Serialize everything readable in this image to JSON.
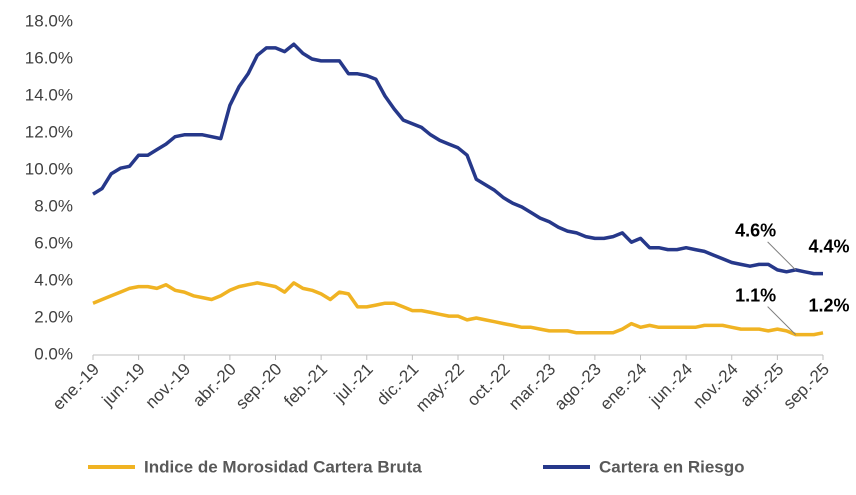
{
  "chart_data": {
    "type": "line",
    "categories": [
      "ene.-19",
      null,
      null,
      null,
      null,
      "jun.-19",
      null,
      null,
      null,
      null,
      "nov.-19",
      null,
      null,
      null,
      null,
      "abr.-20",
      null,
      null,
      null,
      null,
      "sep.-20",
      null,
      null,
      null,
      null,
      "feb.-21",
      null,
      null,
      null,
      null,
      "jul.-21",
      null,
      null,
      null,
      null,
      "dic.-21",
      null,
      null,
      null,
      null,
      "may.-22",
      null,
      null,
      null,
      null,
      "oct.-22",
      null,
      null,
      null,
      null,
      "mar.-23",
      null,
      null,
      null,
      null,
      "ago.-23",
      null,
      null,
      null,
      null,
      "ene.-24",
      null,
      null,
      null,
      null,
      "jun.-24",
      null,
      null,
      null,
      null,
      "nov.-24",
      null,
      null,
      null,
      null,
      "abr.-25",
      null,
      null,
      null,
      null,
      "sep.-25"
    ],
    "series": [
      {
        "name": "Indice de Morosidad Cartera Bruta",
        "color": "#f0b323",
        "values": [
          2.8,
          3.0,
          3.2,
          3.4,
          3.6,
          3.7,
          3.7,
          3.6,
          3.8,
          3.5,
          3.4,
          3.2,
          3.1,
          3.0,
          3.2,
          3.5,
          3.7,
          3.8,
          3.9,
          3.8,
          3.7,
          3.4,
          3.9,
          3.6,
          3.5,
          3.3,
          3.0,
          3.4,
          3.3,
          2.6,
          2.6,
          2.7,
          2.8,
          2.8,
          2.6,
          2.4,
          2.4,
          2.3,
          2.2,
          2.1,
          2.1,
          1.9,
          2.0,
          1.9,
          1.8,
          1.7,
          1.6,
          1.5,
          1.5,
          1.4,
          1.3,
          1.3,
          1.3,
          1.2,
          1.2,
          1.2,
          1.2,
          1.2,
          1.4,
          1.7,
          1.5,
          1.6,
          1.5,
          1.5,
          1.5,
          1.5,
          1.5,
          1.6,
          1.6,
          1.6,
          1.5,
          1.4,
          1.4,
          1.4,
          1.3,
          1.4,
          1.3,
          1.1,
          1.1,
          1.1,
          1.2
        ],
        "value_labels": [
          null,
          null,
          null,
          null,
          null,
          null,
          null,
          null,
          null,
          null,
          null,
          null,
          null,
          null,
          null,
          null,
          null,
          null,
          null,
          null,
          null,
          null,
          null,
          null,
          null,
          null,
          null,
          null,
          null,
          null,
          null,
          null,
          null,
          null,
          null,
          null,
          null,
          null,
          null,
          null,
          null,
          null,
          null,
          null,
          null,
          null,
          null,
          null,
          null,
          null,
          null,
          null,
          null,
          null,
          null,
          null,
          null,
          null,
          null,
          null,
          null,
          null,
          null,
          null,
          null,
          null,
          null,
          null,
          null,
          null,
          null,
          null,
          null,
          null,
          null,
          null,
          null,
          "1.1%",
          null,
          null,
          "1.2%"
        ]
      },
      {
        "name": "Cartera en Riesgo",
        "color": "#26388a",
        "values": [
          8.7,
          9.0,
          9.8,
          10.1,
          10.2,
          10.8,
          10.8,
          11.1,
          11.4,
          11.8,
          11.9,
          11.9,
          11.9,
          11.8,
          11.7,
          13.5,
          14.5,
          15.2,
          16.2,
          16.6,
          16.6,
          16.4,
          16.8,
          16.3,
          16.0,
          15.9,
          15.9,
          15.9,
          15.2,
          15.2,
          15.1,
          14.9,
          14.0,
          13.3,
          12.7,
          12.5,
          12.3,
          11.9,
          11.6,
          11.4,
          11.2,
          10.8,
          9.5,
          9.2,
          8.9,
          8.5,
          8.2,
          8.0,
          7.7,
          7.4,
          7.2,
          6.9,
          6.7,
          6.6,
          6.4,
          6.3,
          6.3,
          6.4,
          6.6,
          6.1,
          6.3,
          5.8,
          5.8,
          5.7,
          5.7,
          5.8,
          5.7,
          5.6,
          5.4,
          5.2,
          5.0,
          4.9,
          4.8,
          4.9,
          4.9,
          4.6,
          4.5,
          4.6,
          4.5,
          4.4,
          4.4
        ],
        "value_labels": [
          null,
          null,
          null,
          null,
          null,
          null,
          null,
          null,
          null,
          null,
          null,
          null,
          null,
          null,
          null,
          null,
          null,
          null,
          null,
          null,
          null,
          null,
          null,
          null,
          null,
          null,
          null,
          null,
          null,
          null,
          null,
          null,
          null,
          null,
          null,
          null,
          null,
          null,
          null,
          null,
          null,
          null,
          null,
          null,
          null,
          null,
          null,
          null,
          null,
          null,
          null,
          null,
          null,
          null,
          null,
          null,
          null,
          null,
          null,
          null,
          null,
          null,
          null,
          null,
          null,
          null,
          null,
          null,
          null,
          null,
          null,
          null,
          null,
          null,
          null,
          null,
          null,
          "4.6%",
          null,
          null,
          "4.4%"
        ]
      }
    ],
    "ylim": [
      0,
      18
    ],
    "yticks": [
      {
        "value": 0,
        "label": "0.0%"
      },
      {
        "value": 2,
        "label": "2.0%"
      },
      {
        "value": 4,
        "label": "4.0%"
      },
      {
        "value": 6,
        "label": "6.0%"
      },
      {
        "value": 8,
        "label": "8.0%"
      },
      {
        "value": 10,
        "label": "10.0%"
      },
      {
        "value": 12,
        "label": "12.0%"
      },
      {
        "value": 14,
        "label": "14.0%"
      },
      {
        "value": 16,
        "label": "16.0%"
      },
      {
        "value": 18,
        "label": "18.0%"
      }
    ],
    "grid": false,
    "legend": "bottom"
  }
}
